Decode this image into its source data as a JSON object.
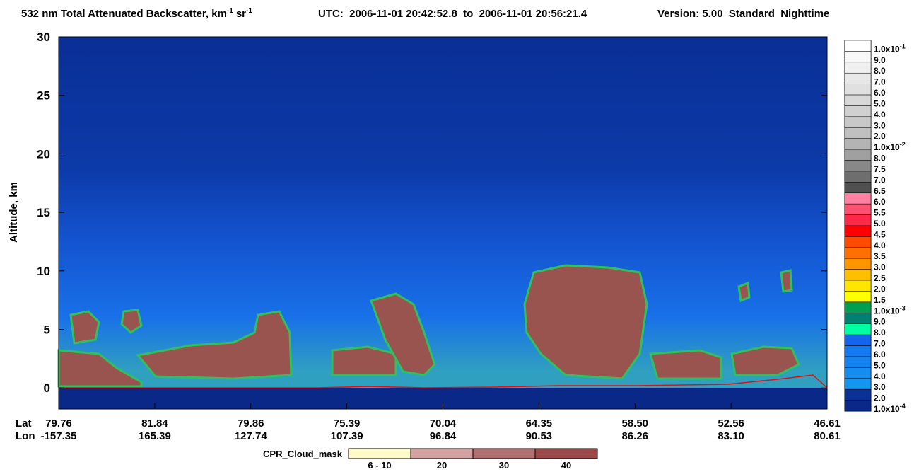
{
  "chart_data": {
    "type": "curtain",
    "title": {
      "main": "532 nm Total Attenuated Backscatter, km",
      "sup1": "-1",
      "unit2": "sr",
      "sup2": "-1"
    },
    "utc": "UTC:  2006-11-01 20:42:52.8  to  2006-11-01 20:56:21.4",
    "version": "Version: 5.00  Standard  Nighttime",
    "ylabel": "Altitude, km",
    "ylim": [
      -1.8,
      30
    ],
    "yticks": [
      0,
      5,
      10,
      15,
      20,
      25,
      30
    ],
    "x_row_labels": [
      "Lat",
      "Lon"
    ],
    "lat": [
      "79.76",
      "81.84",
      "79.86",
      "75.39",
      "70.04",
      "64.35",
      "58.50",
      "52.56",
      "46.61"
    ],
    "lon": [
      "-157.35",
      "165.39",
      "127.74",
      "107.39",
      "96.84",
      "90.53",
      "86.26",
      "83.10",
      "80.61"
    ],
    "colorbar": {
      "labels": [
        {
          "text": "1.0x10",
          "sup": "-1"
        },
        "9.0",
        "8.0",
        "7.0",
        "6.0",
        "5.0",
        "4.0",
        "3.0",
        "2.0",
        {
          "text": "1.0x10",
          "sup": "-2"
        },
        "8.0",
        "7.5",
        "7.0",
        "6.5",
        "6.0",
        "5.5",
        "5.0",
        "4.5",
        "4.0",
        "3.5",
        "3.0",
        "2.5",
        "2.0",
        "1.5",
        {
          "text": "1.0x10",
          "sup": "-3"
        },
        "9.0",
        "8.0",
        "7.0",
        "6.0",
        "5.0",
        "4.0",
        "3.0",
        "2.0",
        {
          "text": "1.0x10",
          "sup": "-4"
        }
      ],
      "colors": [
        "#ffffff",
        "#f8f8f8",
        "#f0f0f0",
        "#e8e8e8",
        "#e0e0e0",
        "#d8d8d8",
        "#d0d0d0",
        "#c8c8c8",
        "#c0c0c0",
        "#b4b4b4",
        "#a0a0a0",
        "#888888",
        "#6e6e6e",
        "#505050",
        "#ff80a0",
        "#ff5070",
        "#ff2848",
        "#ff0000",
        "#ff4a00",
        "#ff7000",
        "#ff9600",
        "#ffbe00",
        "#ffe600",
        "#ffff00",
        "#00a050",
        "#008070",
        "#00ffa0",
        "#1464f0",
        "#1478f0",
        "#1482f0",
        "#148cf0",
        "#1496f0",
        "#0a3296",
        "#0a2888"
      ]
    },
    "cloud_mask": {
      "title": "CPR_Cloud_mask",
      "labels": [
        "6 - 10",
        "20",
        "30",
        "40"
      ],
      "colors": [
        "#fffac8",
        "#d2a09e",
        "#b07070",
        "#9a4848"
      ]
    }
  }
}
